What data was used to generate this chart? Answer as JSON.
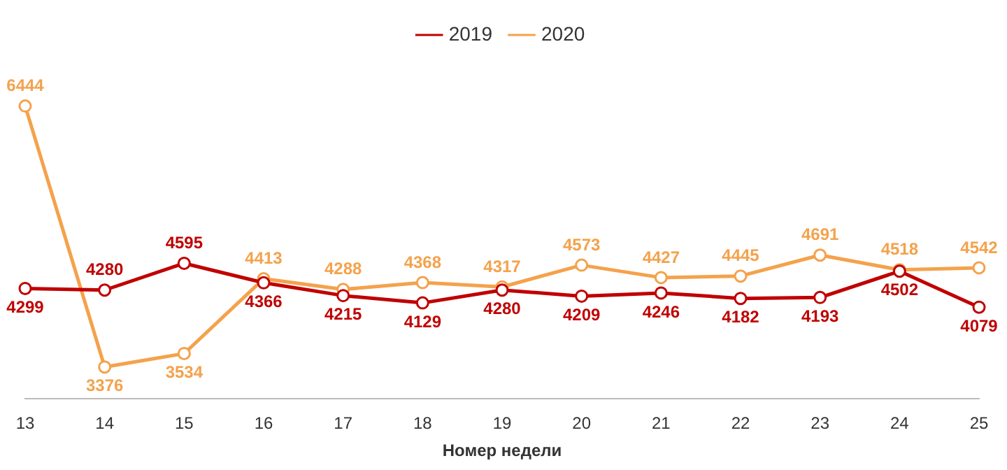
{
  "chart_data": {
    "type": "line",
    "xlabel": "Номер недели",
    "categories": [
      "13",
      "14",
      "15",
      "16",
      "17",
      "18",
      "19",
      "20",
      "21",
      "22",
      "23",
      "24",
      "25"
    ],
    "series": [
      {
        "name": "2019",
        "color": "#c00000",
        "values": [
          4299,
          4280,
          4595,
          4366,
          4215,
          4129,
          4280,
          4209,
          4246,
          4182,
          4193,
          4502,
          4079
        ]
      },
      {
        "name": "2020",
        "color": "#f4a24c",
        "values": [
          6444,
          3376,
          3534,
          4413,
          4288,
          4368,
          4317,
          4573,
          4427,
          4445,
          4691,
          4518,
          4542
        ]
      }
    ],
    "data_labels": true,
    "legend": "top",
    "grid": false,
    "marker": "circle",
    "line_style": "solid"
  }
}
